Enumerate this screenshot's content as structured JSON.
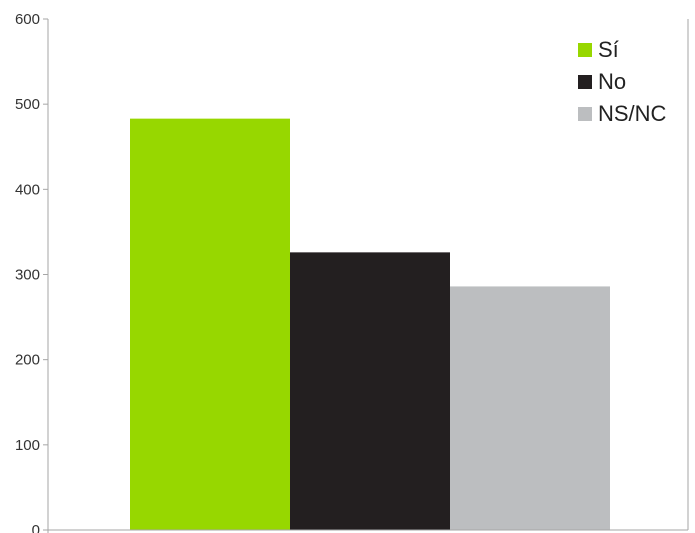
{
  "chart_data": {
    "type": "bar",
    "categories": [
      "Sí",
      "No",
      "NS/NC"
    ],
    "series": [
      {
        "name": "Sí",
        "color": "#97d700",
        "values": [
          483,
          null,
          null
        ]
      },
      {
        "name": "No",
        "color": "#231f20",
        "values": [
          null,
          326,
          null
        ]
      },
      {
        "name": "NS/NC",
        "color": "#bcbec0",
        "values": [
          null,
          null,
          286
        ]
      }
    ],
    "values": [
      483,
      326,
      286
    ],
    "ylim": [
      0,
      600
    ],
    "yticks": [
      "0",
      "100",
      "200",
      "300",
      "400",
      "500",
      "600"
    ],
    "title": "",
    "xlabel": "",
    "ylabel": "",
    "grid": false,
    "legend_position": "top-right",
    "legend": [
      {
        "label": "Sí",
        "color": "#97d700"
      },
      {
        "label": "No",
        "color": "#231f20"
      },
      {
        "label": "NS/NC",
        "color": "#bcbec0"
      }
    ]
  }
}
